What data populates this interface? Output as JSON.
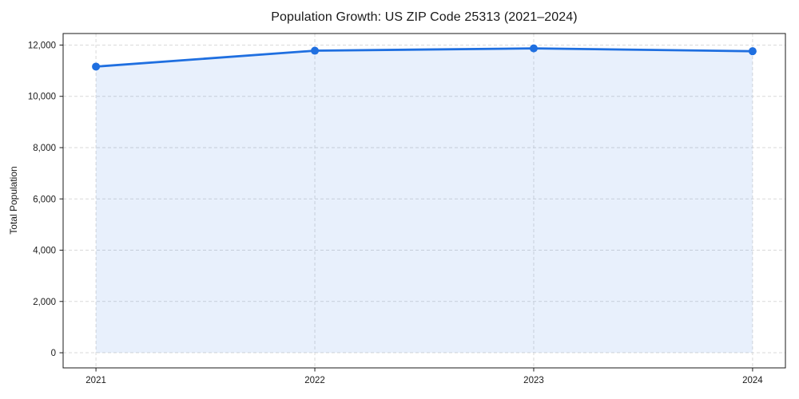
{
  "chart_data": {
    "type": "line",
    "title": "Population Growth: US ZIP Code 25313 (2021–2024)",
    "xlabel": "",
    "ylabel": "Total Population",
    "x": [
      2021,
      2022,
      2023,
      2024
    ],
    "series": [
      {
        "name": "Total Population",
        "values": [
          11160,
          11780,
          11870,
          11760
        ]
      }
    ],
    "x_tick_labels": [
      "2021",
      "2022",
      "2023",
      "2024"
    ],
    "y_ticks": [
      0,
      2000,
      4000,
      6000,
      8000,
      10000,
      12000
    ],
    "y_tick_labels": [
      "0",
      "2,000",
      "4,000",
      "6,000",
      "8,000",
      "10,000",
      "12,000"
    ],
    "xlim": [
      2020.85,
      2024.15
    ],
    "ylim": [
      -590,
      12450
    ],
    "area_baseline": 0,
    "grid": "both, dashed",
    "legend": "none",
    "colors": {
      "line": "#1f6fe0",
      "marker": "#1f6fe0",
      "area_fill_rgba": "rgba(31,111,224,0.10)",
      "grid": "#d9d9d9",
      "spine": "#1a1a1a",
      "text": "#1a1a1a",
      "background": "#ffffff"
    }
  }
}
